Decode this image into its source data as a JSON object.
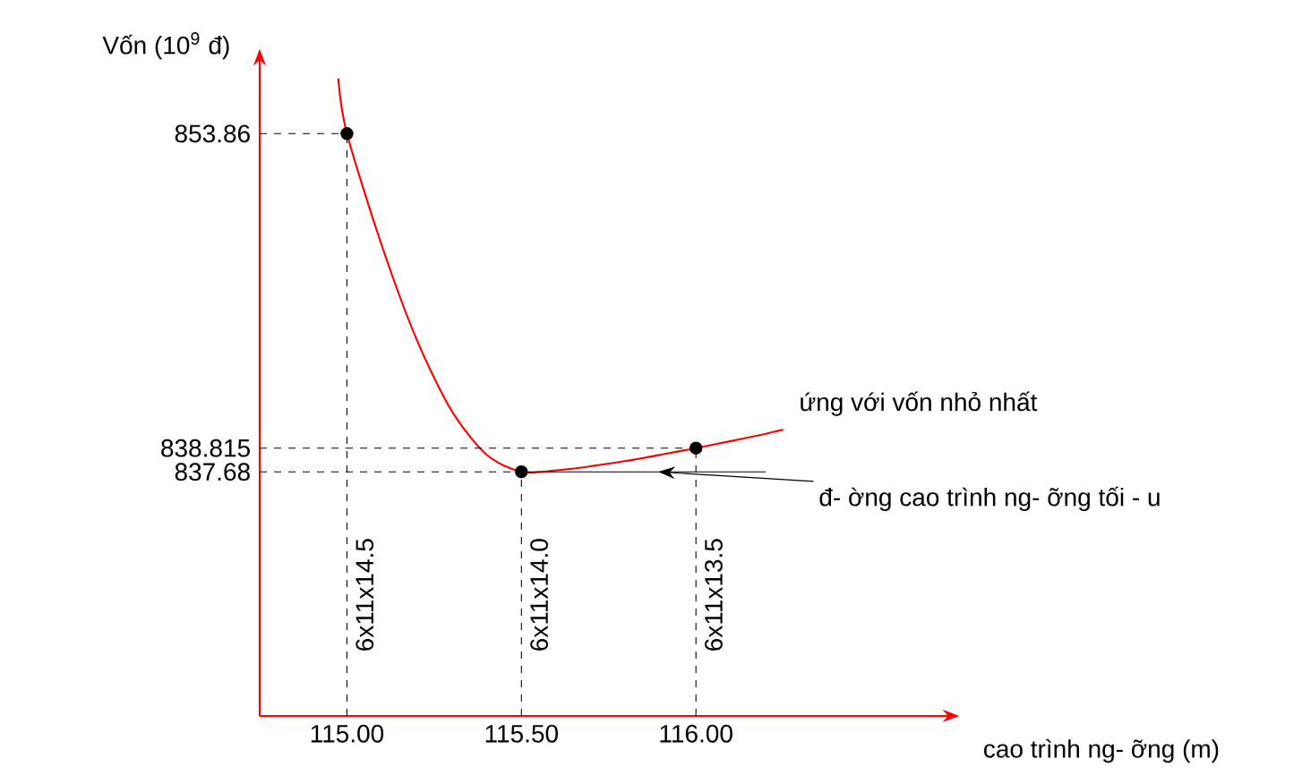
{
  "chart_data": {
    "type": "line",
    "ylabel": "Vốn (10$^{9}$ đ)",
    "xlabel": "cao trình ng- ỡng (m)",
    "xlim": [
      114.75,
      116.7
    ],
    "ylim": [
      826,
      857
    ],
    "xticks": [
      {
        "value": 115,
        "label": "115.00"
      },
      {
        "value": 115.5,
        "label": "115.50"
      },
      {
        "value": 116,
        "label": "116.00"
      }
    ],
    "yticks": [
      {
        "value": 837.68,
        "label": "837.68"
      },
      {
        "value": 838.815,
        "label": "838.815"
      },
      {
        "value": 853.86,
        "label": "853.86"
      }
    ],
    "grid": false,
    "series": [
      {
        "color": "#ff0000",
        "marker": "none",
        "x": [
          114.975,
          115.0,
          115.1,
          115.2,
          115.3,
          115.4,
          115.5,
          115.6,
          115.7,
          115.8,
          115.9,
          116.0,
          116.1,
          116.2,
          116.25
        ],
        "values": [
          856.5,
          853.86,
          848.5,
          844.0,
          840.6,
          838.5,
          837.68,
          837.75,
          837.95,
          838.2,
          838.5,
          838.815,
          839.15,
          839.5,
          839.7
        ]
      },
      {
        "type": "scatter",
        "color": "#000000",
        "marker": "circle",
        "x": [
          115.0,
          115.5,
          116.0
        ],
        "values": [
          853.86,
          837.68,
          838.815
        ]
      }
    ],
    "ref_lines": [
      {
        "axis": "y",
        "value": 853.86,
        "line_style": "dashed",
        "color": "#000000"
      },
      {
        "axis": "y",
        "value": 838.815,
        "line_style": "dashed",
        "color": "#000000"
      },
      {
        "axis": "y",
        "value": 837.68,
        "line_style": "dashed",
        "color": "#000000"
      },
      {
        "axis": "y",
        "value": 837.68,
        "line_style": "solid",
        "color": "#000000",
        "label": "đ- ờng cao trình ng- ỡng tối - u"
      },
      {
        "axis": "x",
        "value": 115.0,
        "line_style": "dashed",
        "color": "#000000"
      },
      {
        "axis": "x",
        "value": 115.5,
        "line_style": "dashed",
        "color": "#000000"
      },
      {
        "axis": "x",
        "value": 116.0,
        "line_style": "dashed",
        "color": "#000000"
      }
    ],
    "annotations": [
      "6x11x14.5",
      "6x11x14.0",
      "6x11x13.5",
      {
        "text": "ứng với vốn nhỏ nhất",
        "x": 116.25,
        "y": 839.7
      }
    ]
  }
}
